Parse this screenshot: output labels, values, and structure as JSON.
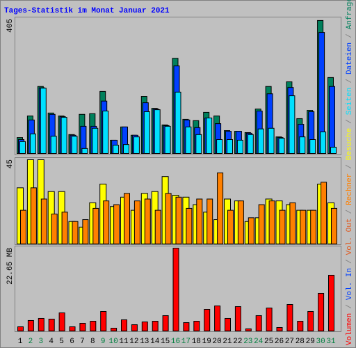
{
  "title": "Tages-Statistik im Monat Januar 2021",
  "legend_separator": "/",
  "chart_data": [
    {
      "type": "bar",
      "ylim": [
        0,
        405
      ],
      "yticks": [
        405
      ],
      "series": [
        {
          "name": "Anfragen",
          "color": "#00805c",
          "values": [
            48,
            113,
            202,
            122,
            113,
            57,
            118,
            120,
            187,
            40,
            80,
            55,
            172,
            136,
            86,
            287,
            103,
            99,
            124,
            113,
            69,
            67,
            63,
            134,
            202,
            50,
            216,
            105,
            130,
            401,
            229
          ]
        },
        {
          "name": "Dateien",
          "color": "#0040ff",
          "values": [
            42,
            101,
            198,
            118,
            111,
            55,
            82,
            82,
            158,
            40,
            80,
            55,
            153,
            134,
            84,
            264,
            101,
            78,
            107,
            90,
            67,
            67,
            61,
            128,
            180,
            48,
            199,
            88,
            126,
            365,
            202
          ]
        },
        {
          "name": "Seiten",
          "color": "#00e0ff",
          "values": [
            36,
            59,
            197,
            52,
            109,
            52,
            15,
            76,
            128,
            25,
            27,
            50,
            126,
            132,
            82,
            185,
            80,
            57,
            107,
            42,
            42,
            40,
            57,
            74,
            76,
            46,
            174,
            50,
            42,
            65,
            19
          ]
        }
      ]
    },
    {
      "type": "bar",
      "ylim": [
        0,
        45
      ],
      "yticks": [
        45
      ],
      "series": [
        {
          "name": "Besuche",
          "color": "#ffff00",
          "values": [
            30,
            45,
            45,
            28,
            28,
            12,
            9,
            22,
            32,
            20,
            25,
            18,
            27,
            28,
            36,
            26,
            25,
            21,
            17,
            13,
            24,
            23,
            12,
            14,
            24,
            23,
            21,
            18,
            18,
            32,
            22
          ]
        },
        {
          "name": "Rechner",
          "color": "#ff8000",
          "values": [
            18,
            30,
            24,
            16,
            17,
            12,
            13,
            19,
            23,
            21,
            27,
            23,
            24,
            18,
            27,
            25,
            19,
            24,
            24,
            38,
            18,
            23,
            14,
            21,
            23,
            18,
            22,
            18,
            18,
            33,
            19
          ]
        }
      ]
    },
    {
      "type": "bar",
      "ylim": [
        0,
        22.65
      ],
      "yticks": [
        {
          "value": 22.65,
          "label": "22.65 MB"
        }
      ],
      "categories": [
        "1",
        "2",
        "3",
        "4",
        "5",
        "6",
        "7",
        "8",
        "9",
        "10",
        "11",
        "12",
        "13",
        "14",
        "15",
        "16",
        "17",
        "18",
        "19",
        "20",
        "21",
        "22",
        "23",
        "24",
        "25",
        "26",
        "27",
        "28",
        "29",
        "30",
        "31"
      ],
      "weekend": [
        1,
        2,
        8,
        9,
        15,
        16,
        22,
        23,
        29,
        30
      ],
      "weekend_color": "#008040",
      "series": [
        {
          "name": "Volumen",
          "color": "#ff0000",
          "values": [
            1.14,
            2.86,
            3.43,
            3.24,
            4.95,
            1.14,
            2.09,
            2.66,
            5.33,
            0.76,
            3.05,
            1.71,
            2.47,
            2.66,
            4.19,
            22.65,
            2.28,
            2.66,
            5.9,
            6.85,
            3.43,
            6.66,
            0.57,
            4.19,
            6.28,
            0.95,
            7.23,
            2.66,
            5.33,
            10.28,
            15.23
          ]
        }
      ],
      "legend_extra": [
        {
          "name": "Vol. In",
          "color": "#0040ff"
        },
        {
          "name": "Vol. Out",
          "color": "#e05a20"
        }
      ]
    }
  ]
}
